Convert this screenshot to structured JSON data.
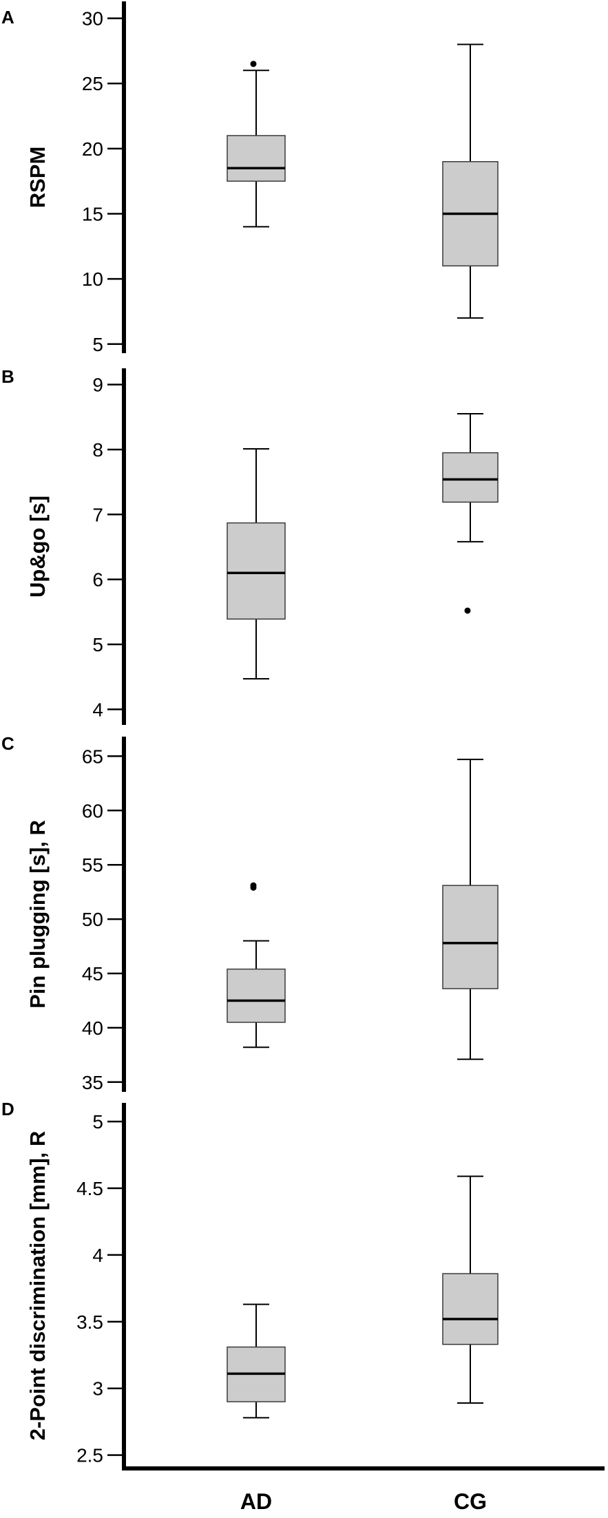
{
  "chart_data": [
    {
      "type": "boxplot",
      "panel": "A",
      "ylabel": "RSPM",
      "ylim": [
        4.3,
        31.3
      ],
      "yticks": [
        5,
        10,
        15,
        20,
        25,
        30
      ],
      "ytick_labels": [
        "5",
        "10",
        "15",
        "20",
        "25",
        "30"
      ],
      "categories": [
        "AD",
        "CG"
      ],
      "boxes": [
        {
          "category": "AD",
          "whisker_low": 14,
          "q1": 17.5,
          "median": 18.5,
          "q3": 21,
          "whisker_high": 26,
          "outliers": [
            26.5
          ]
        },
        {
          "category": "CG",
          "whisker_low": 7,
          "q1": 11,
          "median": 15,
          "q3": 19,
          "whisker_high": 28,
          "outliers": []
        }
      ]
    },
    {
      "type": "boxplot",
      "panel": "B",
      "ylabel": "Up&go [s]",
      "ylim": [
        3.76,
        9.25
      ],
      "yticks": [
        4,
        5,
        6,
        7,
        8,
        9
      ],
      "ytick_labels": [
        "4",
        "5",
        "6",
        "7",
        "8",
        "9"
      ],
      "categories": [
        "AD",
        "CG"
      ],
      "boxes": [
        {
          "category": "AD",
          "whisker_low": 4.47,
          "q1": 5.39,
          "median": 6.1,
          "q3": 6.87,
          "whisker_high": 8.01,
          "outliers": []
        },
        {
          "category": "CG",
          "whisker_low": 6.58,
          "q1": 7.19,
          "median": 7.54,
          "q3": 7.95,
          "whisker_high": 8.55,
          "outliers": [
            5.52
          ]
        }
      ]
    },
    {
      "type": "boxplot",
      "panel": "C",
      "ylabel": "Pin plugging [s], R",
      "ylim": [
        34.1,
        66.8
      ],
      "yticks": [
        35,
        40,
        45,
        50,
        55,
        60,
        65
      ],
      "ytick_labels": [
        "35",
        "40",
        "45",
        "50",
        "55",
        "60",
        "65"
      ],
      "categories": [
        "AD",
        "CG"
      ],
      "boxes": [
        {
          "category": "AD",
          "whisker_low": 38.2,
          "q1": 40.5,
          "median": 42.5,
          "q3": 45.4,
          "whisker_high": 48,
          "outliers": [
            52.9,
            53.1
          ]
        },
        {
          "category": "CG",
          "whisker_low": 37.1,
          "q1": 43.6,
          "median": 47.8,
          "q3": 53.1,
          "whisker_high": 64.7,
          "outliers": []
        }
      ]
    },
    {
      "type": "boxplot",
      "panel": "D",
      "ylabel": "2-Point discrimination [mm], R",
      "ylim": [
        2.4,
        5.14
      ],
      "yticks": [
        2.5,
        3,
        3.5,
        4,
        4.5,
        5
      ],
      "ytick_labels": [
        "2.5",
        "3",
        "3.5",
        "4",
        "4.5",
        "5"
      ],
      "categories": [
        "AD",
        "CG"
      ],
      "boxes": [
        {
          "category": "AD",
          "whisker_low": 2.78,
          "q1": 2.9,
          "median": 3.11,
          "q3": 3.31,
          "whisker_high": 3.63,
          "outliers": []
        },
        {
          "category": "CG",
          "whisker_low": 2.89,
          "q1": 3.33,
          "median": 3.52,
          "q3": 3.86,
          "whisker_high": 4.59,
          "outliers": []
        }
      ]
    }
  ],
  "colors": {
    "box_fill": "#cccccc",
    "box_stroke": "#3a3a3a",
    "median": "#000000",
    "axis": "#000000",
    "background": "#ffffff"
  }
}
